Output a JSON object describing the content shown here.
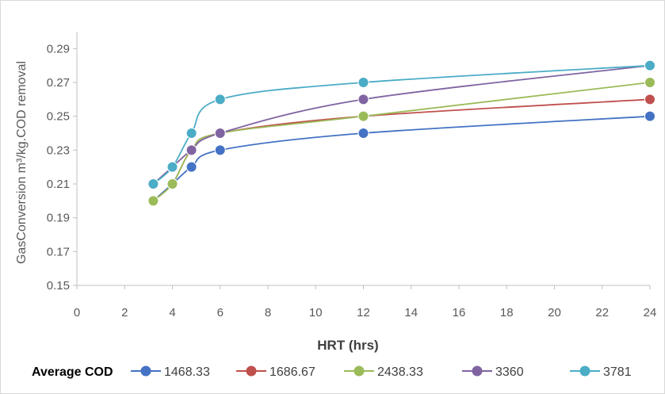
{
  "chart_data": {
    "type": "line",
    "title": "",
    "xlabel": "HRT (hrs)",
    "ylabel": "GasConversion  m³/kg.COD removal",
    "xlim": [
      0,
      24
    ],
    "ylim": [
      0.15,
      0.3
    ],
    "x_ticks": [
      "0",
      "2",
      "4",
      "6",
      "8",
      "10",
      "12",
      "14",
      "16",
      "18",
      "20",
      "22",
      "24"
    ],
    "y_ticks": [
      "0.15",
      "0.17",
      "0.19",
      "0.21",
      "0.23",
      "0.25",
      "0.27",
      "0.29"
    ],
    "grid": false,
    "smooth": true,
    "legend": {
      "title": "Average COD",
      "position": "bottom"
    },
    "x": [
      3.2,
      4,
      4.8,
      6,
      12,
      24
    ],
    "series": [
      {
        "name": "1468.33",
        "color": "#4472c4",
        "values": [
          0.2,
          0.21,
          0.22,
          0.23,
          0.24,
          0.25
        ]
      },
      {
        "name": "1686.67",
        "color": "#c0504d",
        "values": [
          0.2,
          0.21,
          0.23,
          0.24,
          0.25,
          0.26
        ]
      },
      {
        "name": "2438.33",
        "color": "#9bbb59",
        "values": [
          0.2,
          0.21,
          0.23,
          0.24,
          0.25,
          0.27
        ]
      },
      {
        "name": "3360",
        "color": "#8064a2",
        "values": [
          0.21,
          0.22,
          0.23,
          0.24,
          0.26,
          0.28
        ]
      },
      {
        "name": "3781",
        "color": "#4bacc6",
        "values": [
          0.21,
          0.22,
          0.24,
          0.26,
          0.27,
          0.28
        ]
      }
    ]
  }
}
